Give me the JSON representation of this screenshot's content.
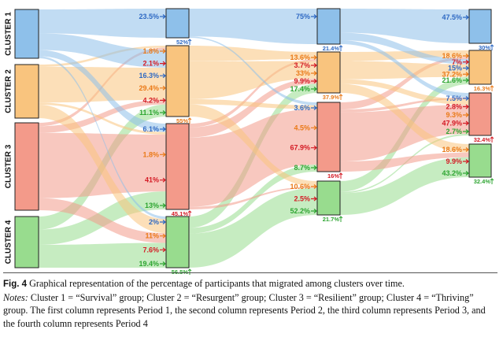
{
  "colors": {
    "c1": "#8ec0ea",
    "c2": "#f9c47e",
    "c3": "#f39a8a",
    "c4": "#98dc8e",
    "t1": "#2e69c3",
    "t2": "#ea7a18",
    "t3": "#d41a24",
    "t4": "#2ea532"
  },
  "clusters": [
    {
      "id": "c1",
      "label": "CLUSTER 1"
    },
    {
      "id": "c2",
      "label": "CLUSTER 2"
    },
    {
      "id": "c3",
      "label": "CLUSTER 3"
    },
    {
      "id": "c4",
      "label": "CLUSTER 4"
    }
  ],
  "periods": [
    {
      "nodes": {
        "c1": {
          "y0": 12,
          "y1": 74
        },
        "c2": {
          "y0": 82,
          "y1": 150
        },
        "c3": {
          "y0": 156,
          "y1": 267
        },
        "c4": {
          "y0": 275,
          "y1": 340
        }
      }
    },
    {
      "nodes": {
        "c1": {
          "y0": 11,
          "y1": 48,
          "foot": "52%"
        },
        "c2": {
          "y0": 58,
          "y1": 148,
          "foot": "55%"
        },
        "c3": {
          "y0": 157,
          "y1": 266,
          "foot": "45.1%"
        },
        "c4": {
          "y0": 275,
          "y1": 340,
          "foot": "56.5%"
        }
      }
    },
    {
      "nodes": {
        "c1": {
          "y0": 11,
          "y1": 56,
          "foot": "21.4%"
        },
        "c2": {
          "y0": 66,
          "y1": 118,
          "foot": "37.9%"
        },
        "c3": {
          "y0": 130,
          "y1": 218,
          "foot": "16%"
        },
        "c4": {
          "y0": 230,
          "y1": 273,
          "foot": "21.7%"
        }
      }
    },
    {
      "nodes": {
        "c1": {
          "y0": 12,
          "y1": 55,
          "foot": "30%"
        },
        "c2": {
          "y0": 64,
          "y1": 107,
          "foot": "16.3%"
        },
        "c3": {
          "y0": 118,
          "y1": 172,
          "foot": "32.4%"
        },
        "c4": {
          "y0": 183,
          "y1": 225,
          "foot": "32.4%"
        }
      }
    }
  ],
  "transitions": [
    {
      "inputs": [
        {
          "c": "c1",
          "list": [
            {
              "label": "23.5%",
              "src": "c1"
            }
          ]
        },
        {
          "c": "c2",
          "list": [
            {
              "label": "1.8%",
              "src": "c2"
            },
            {
              "label": "2.1%",
              "src": "c3"
            },
            {
              "label": "16.3%",
              "src": "c1"
            },
            {
              "label": "29.4%",
              "src": "c2"
            },
            {
              "label": "4.2%",
              "src": "c3"
            },
            {
              "label": "11.1%",
              "src": "c4"
            }
          ]
        },
        {
          "c": "c3",
          "list": [
            {
              "label": "6.1%",
              "src": "c1"
            },
            {
              "label": "1.8%",
              "src": "c2"
            },
            {
              "label": "41%",
              "src": "c3"
            },
            {
              "label": "13%",
              "src": "c4"
            }
          ]
        },
        {
          "c": "c4",
          "list": [
            {
              "label": "2%",
              "src": "c1"
            },
            {
              "label": "11%",
              "src": "c2"
            },
            {
              "label": "7.6%",
              "src": "c3"
            },
            {
              "label": "19.4%",
              "src": "c4"
            }
          ]
        }
      ]
    },
    {
      "inputs": [
        {
          "c": "c1",
          "list": [
            {
              "label": "75%",
              "src": "c1"
            }
          ]
        },
        {
          "c": "c2",
          "list": [
            {
              "label": "13.6%",
              "src": "c2"
            },
            {
              "label": "3.7%",
              "src": "c3"
            },
            {
              "label": "33%",
              "src": "c2"
            },
            {
              "label": "9.9%",
              "src": "c3"
            },
            {
              "label": "17.4%",
              "src": "c4"
            }
          ]
        },
        {
          "c": "c3",
          "list": [
            {
              "label": "3.6%",
              "src": "c1"
            },
            {
              "label": "4.5%",
              "src": "c2"
            },
            {
              "label": "67.9%",
              "src": "c3"
            },
            {
              "label": "8.7%",
              "src": "c4"
            }
          ]
        },
        {
          "c": "c4",
          "list": [
            {
              "label": "10.6%",
              "src": "c2"
            },
            {
              "label": "2.5%",
              "src": "c3"
            },
            {
              "label": "52.2%",
              "src": "c4"
            }
          ]
        }
      ]
    },
    {
      "inputs": [
        {
          "c": "c1",
          "list": [
            {
              "label": "47.5%",
              "src": "c1"
            }
          ]
        },
        {
          "c": "c2",
          "list": [
            {
              "label": "18.6%",
              "src": "c2"
            },
            {
              "label": "7%",
              "src": "c3"
            },
            {
              "label": "15%",
              "src": "c1"
            },
            {
              "label": "37.2%",
              "src": "c2"
            },
            {
              "label": "21.6%",
              "src": "c4"
            }
          ]
        },
        {
          "c": "c3",
          "list": [
            {
              "label": "7.5%",
              "src": "c1"
            },
            {
              "label": "2.8%",
              "src": "c3"
            },
            {
              "label": "9.3%",
              "src": "c2"
            },
            {
              "label": "47.9%",
              "src": "c3"
            },
            {
              "label": "2.7%",
              "src": "c4"
            }
          ]
        },
        {
          "c": "c4",
          "list": [
            {
              "label": "18.6%",
              "src": "c2"
            },
            {
              "label": "9.9%",
              "src": "c3"
            },
            {
              "label": "43.2%",
              "src": "c4"
            }
          ]
        }
      ]
    }
  ],
  "caption": {
    "fig_label": "Fig. 4",
    "fig_text": "Graphical representation of the percentage of participants that migrated among clusters over time.",
    "notes_label": "Notes:",
    "notes_text": "Cluster 1 = “Survival” group; Cluster 2 = “Resurgent” group; Cluster 3 = “Resilient” group; Cluster 4 = “Thriving” group. The first column represents Period 1, the second column represents Period 2, the third column represents Period 3, and the fourth column represents Period 4"
  }
}
